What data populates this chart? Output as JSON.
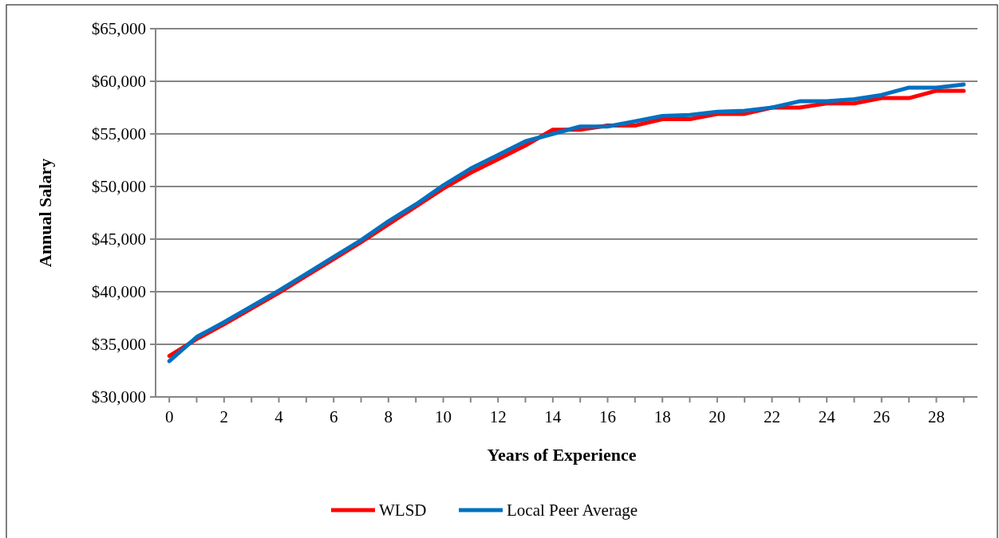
{
  "chart_data": {
    "type": "line",
    "xlabel": "Years of Experience",
    "ylabel": "Annual Salary",
    "x": [
      0,
      1,
      2,
      3,
      4,
      5,
      6,
      7,
      8,
      9,
      10,
      11,
      12,
      13,
      14,
      15,
      16,
      17,
      18,
      19,
      20,
      21,
      22,
      23,
      24,
      25,
      26,
      27,
      28,
      29
    ],
    "xlim": [
      -0.5,
      29.5
    ],
    "xticks": [
      0,
      {
        "value": 1,
        "label": null
      },
      2,
      {
        "value": 3,
        "label": null
      },
      4,
      {
        "value": 5,
        "label": null
      },
      6,
      {
        "value": 7,
        "label": null
      },
      8,
      {
        "value": 9,
        "label": null
      },
      10,
      {
        "value": 11,
        "label": null
      },
      12,
      {
        "value": 13,
        "label": null
      },
      14,
      {
        "value": 15,
        "label": null
      },
      16,
      {
        "value": 17,
        "label": null
      },
      18,
      {
        "value": 19,
        "label": null
      },
      20,
      {
        "value": 21,
        "label": null
      },
      22,
      {
        "value": 23,
        "label": null
      },
      24,
      {
        "value": 25,
        "label": null
      },
      26,
      {
        "value": 27,
        "label": null
      },
      28,
      {
        "value": 29,
        "label": null
      }
    ],
    "series": [
      {
        "name": "WLSD",
        "color": "#ff0000",
        "values": [
          33900,
          35500,
          36900,
          38400,
          39900,
          41500,
          43100,
          44700,
          46400,
          48100,
          49800,
          51300,
          52600,
          53900,
          55400,
          55400,
          55800,
          55800,
          56400,
          56400,
          56900,
          56900,
          57500,
          57500,
          57900,
          57900,
          58400,
          58400,
          59100,
          59100
        ]
      },
      {
        "name": "Local Peer Average",
        "color": "#0070c0",
        "values": [
          33400,
          35700,
          37100,
          38600,
          40100,
          41700,
          43300,
          44900,
          46700,
          48300,
          50100,
          51700,
          53000,
          54300,
          55000,
          55700,
          55700,
          56200,
          56700,
          56800,
          57100,
          57200,
          57500,
          58100,
          58100,
          58300,
          58700,
          59400,
          59400,
          59700
        ]
      }
    ],
    "ylim": [
      30000,
      65000
    ],
    "yticks": [
      {
        "value": 30000,
        "label": "$30,000"
      },
      {
        "value": 35000,
        "label": "$35,000"
      },
      {
        "value": 40000,
        "label": "$40,000"
      },
      {
        "value": 45000,
        "label": "$45,000"
      },
      {
        "value": 50000,
        "label": "$50,000"
      },
      {
        "value": 55000,
        "label": "$55,000"
      },
      {
        "value": 60000,
        "label": "$60,000"
      },
      {
        "value": 65000,
        "label": "$65,000"
      }
    ],
    "grid": "y",
    "legend": "bottom",
    "marker": "none",
    "line_style": "solid"
  }
}
